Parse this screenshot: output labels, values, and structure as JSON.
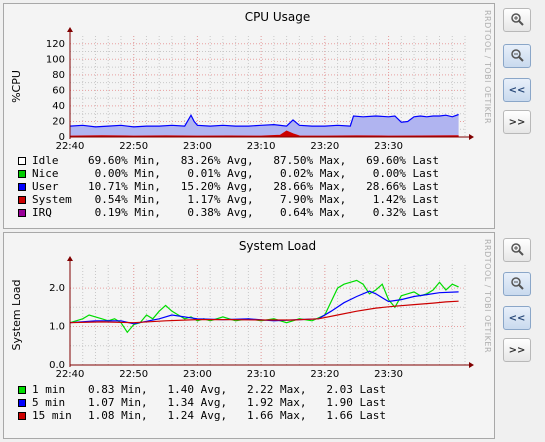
{
  "watermark": "RRDTOOL / TOBI OETIKER",
  "buttons": {
    "zoom_in": "",
    "zoom_out": "",
    "prev": "<<",
    "next": ">>"
  },
  "colors": {
    "grid_major": "#e8a0a0",
    "grid_minor": "#c8c8c8",
    "axis": "#800000"
  },
  "chart_data": [
    {
      "type": "area",
      "title": "CPU Usage",
      "ylabel": "%CPU",
      "xlabel": "",
      "ylim": [
        0,
        130
      ],
      "yticks": [
        "0",
        "20",
        "40",
        "60",
        "80",
        "100",
        "120"
      ],
      "ytick_values": [
        0,
        20,
        40,
        60,
        80,
        100,
        120
      ],
      "xlim": [
        0,
        62
      ],
      "xticks": [
        "22:40",
        "22:50",
        "23:00",
        "23:10",
        "23:20",
        "23:30"
      ],
      "xtick_values": [
        0,
        10,
        20,
        30,
        40,
        50
      ],
      "x_unit": "minutes after 22:40",
      "grid": true,
      "series": [
        {
          "name": "Idle",
          "color": "#ffffff",
          "stats_text": "69.60% Min,   83.26% Avg,   87.50% Max,   69.60% Last"
        },
        {
          "name": "Nice",
          "color": "#00cc00",
          "stats_text": " 0.00% Min,    0.01% Avg,    0.02% Max,    0.00% Last"
        },
        {
          "name": "User",
          "color": "#0000ff",
          "fill": "#b0b4f0",
          "stats_text": "10.71% Min,   15.20% Avg,   28.66% Max,   28.66% Last",
          "x": [
            0,
            2,
            4,
            6,
            8,
            10,
            12,
            14,
            16,
            18,
            19,
            19.5,
            20,
            22,
            24,
            26,
            28,
            30,
            32,
            34,
            35,
            36,
            38,
            40,
            42,
            44,
            44.5,
            46,
            48,
            50,
            51,
            52,
            53,
            54,
            55,
            56,
            57,
            58,
            59,
            60,
            61
          ],
          "y": [
            14,
            15,
            13,
            14,
            15,
            13,
            14,
            14,
            15,
            14,
            28,
            20,
            15,
            14,
            15,
            14,
            14,
            15,
            16,
            14,
            22,
            15,
            14,
            14,
            15,
            14,
            27,
            26,
            27,
            26,
            27,
            19,
            20,
            26,
            27,
            26,
            27,
            27,
            28,
            26,
            29
          ]
        },
        {
          "name": "System",
          "color": "#cc0000",
          "fill": "#cc0000",
          "stats_text": " 0.54% Min,    1.17% Avg,    7.90% Max,    1.42% Last",
          "x": [
            0,
            5,
            10,
            15,
            20,
            25,
            30,
            33,
            34,
            35,
            36,
            40,
            45,
            50,
            55,
            61
          ],
          "y": [
            1,
            1.5,
            1,
            1.3,
            1,
            1.2,
            1,
            2,
            7.5,
            4,
            1.2,
            1,
            1.3,
            1,
            1.2,
            1.4
          ]
        },
        {
          "name": "IRQ",
          "color": "#990099",
          "stats_text": " 0.19% Min,    0.38% Avg,    0.64% Max,    0.32% Last"
        }
      ]
    },
    {
      "type": "line",
      "title": "System Load",
      "ylabel": "System Load",
      "xlabel": "",
      "ylim": [
        0,
        2.6
      ],
      "yticks": [
        "0.0",
        "1.0",
        "2.0"
      ],
      "ytick_values": [
        0,
        1,
        2
      ],
      "xlim": [
        0,
        62
      ],
      "xticks": [
        "22:40",
        "22:50",
        "23:00",
        "23:10",
        "23:20",
        "23:30"
      ],
      "xtick_values": [
        0,
        10,
        20,
        30,
        40,
        50
      ],
      "x_unit": "minutes after 22:40",
      "grid": true,
      "series": [
        {
          "name": "1 min",
          "color": "#00dd00",
          "stats_text": "0.83 Min,   1.40 Avg,   2.22 Max,   2.03 Last",
          "x": [
            0,
            2,
            3,
            4,
            5,
            6,
            7,
            8,
            9,
            10,
            11,
            12,
            13,
            14,
            15,
            16,
            17,
            18,
            19,
            20,
            21,
            22,
            24,
            26,
            28,
            30,
            32,
            34,
            36,
            38,
            40,
            41,
            42,
            43,
            44,
            45,
            46,
            47,
            48,
            49,
            50,
            51,
            52,
            53,
            54,
            55,
            56,
            57,
            58,
            59,
            60,
            61
          ],
          "y": [
            1.1,
            1.2,
            1.3,
            1.25,
            1.2,
            1.15,
            1.2,
            1.1,
            0.85,
            1.05,
            1.1,
            1.3,
            1.2,
            1.4,
            1.55,
            1.4,
            1.3,
            1.2,
            1.25,
            1.15,
            1.2,
            1.15,
            1.25,
            1.15,
            1.2,
            1.15,
            1.2,
            1.1,
            1.2,
            1.15,
            1.3,
            1.65,
            2.0,
            2.1,
            2.15,
            2.2,
            2.1,
            1.85,
            1.95,
            2.1,
            1.7,
            1.5,
            1.8,
            1.85,
            1.9,
            1.8,
            1.85,
            1.95,
            2.15,
            1.95,
            2.1,
            2.03
          ]
        },
        {
          "name": "5 min",
          "color": "#0000ff",
          "stats_text": "1.07 Min,   1.34 Avg,   1.92 Max,   1.90 Last",
          "x": [
            0,
            4,
            8,
            10,
            14,
            16,
            20,
            24,
            28,
            32,
            36,
            39,
            41,
            43,
            45,
            47,
            48,
            49,
            50,
            52,
            54,
            56,
            58,
            61
          ],
          "y": [
            1.1,
            1.15,
            1.15,
            1.07,
            1.2,
            1.3,
            1.2,
            1.18,
            1.2,
            1.15,
            1.18,
            1.2,
            1.4,
            1.62,
            1.78,
            1.92,
            1.85,
            1.75,
            1.65,
            1.7,
            1.78,
            1.83,
            1.88,
            1.9
          ]
        },
        {
          "name": "15 min",
          "color": "#cc0000",
          "stats_text": "1.08 Min,   1.24 Avg,   1.66 Max,   1.66 Last",
          "x": [
            0,
            5,
            10,
            15,
            20,
            25,
            30,
            35,
            39,
            42,
            45,
            48,
            51,
            54,
            57,
            59,
            61
          ],
          "y": [
            1.1,
            1.12,
            1.1,
            1.15,
            1.18,
            1.18,
            1.17,
            1.17,
            1.2,
            1.3,
            1.4,
            1.48,
            1.53,
            1.57,
            1.61,
            1.64,
            1.66
          ]
        }
      ]
    }
  ]
}
